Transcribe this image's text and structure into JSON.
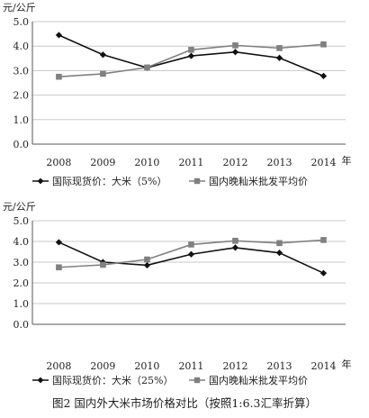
{
  "caption": "图2  国内外大米市场价格对比（按照1:6.3汇率折算）",
  "chart_data": [
    {
      "type": "line",
      "ylabel": "元/公斤",
      "xlabel": "年",
      "ylim": [
        0,
        5
      ],
      "yticks": [
        "0.0",
        "1.0",
        "2.0",
        "3.0",
        "4.0",
        "5.0"
      ],
      "categories": [
        "2008",
        "2009",
        "2010",
        "2011",
        "2012",
        "2013",
        "2014"
      ],
      "series": [
        {
          "name": "国际现货价：大米（5%）",
          "marker": "diamond",
          "color": "#111111",
          "values": [
            4.45,
            3.65,
            3.12,
            3.6,
            3.76,
            3.52,
            2.78
          ]
        },
        {
          "name": "国内晚籼米批发平均价",
          "marker": "square",
          "color": "#808080",
          "values": [
            2.75,
            2.87,
            3.13,
            3.85,
            4.03,
            3.92,
            4.07
          ]
        }
      ],
      "legend": "bottom"
    },
    {
      "type": "line",
      "ylabel": "元/公斤",
      "xlabel": "年",
      "ylim": [
        0,
        5
      ],
      "yticks": [
        "0.0",
        "1.0",
        "2.0",
        "3.0",
        "4.0",
        "5.0"
      ],
      "categories": [
        "2008",
        "2009",
        "2010",
        "2011",
        "2012",
        "2013",
        "2014"
      ],
      "series": [
        {
          "name": "国际现货价：大米（25%）",
          "marker": "diamond",
          "color": "#111111",
          "values": [
            3.96,
            3.0,
            2.85,
            3.38,
            3.7,
            3.45,
            2.47
          ]
        },
        {
          "name": "国内晚籼米批发平均价",
          "marker": "square",
          "color": "#808080",
          "values": [
            2.75,
            2.87,
            3.13,
            3.85,
            4.03,
            3.92,
            4.07
          ]
        }
      ],
      "legend": "bottom"
    }
  ]
}
